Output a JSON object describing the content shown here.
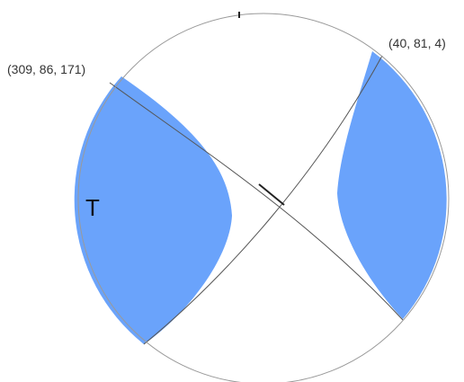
{
  "diagram": {
    "plane_1_label": "(309, 86, 171)",
    "plane_2_label": "(40, 81, 4)",
    "quadrant_label": "T",
    "colors": {
      "compressional_fill": "#6aa3fb",
      "circle_stroke": "#9a9a9a",
      "plane_stroke": "#555555",
      "background": "#ffffff"
    }
  }
}
